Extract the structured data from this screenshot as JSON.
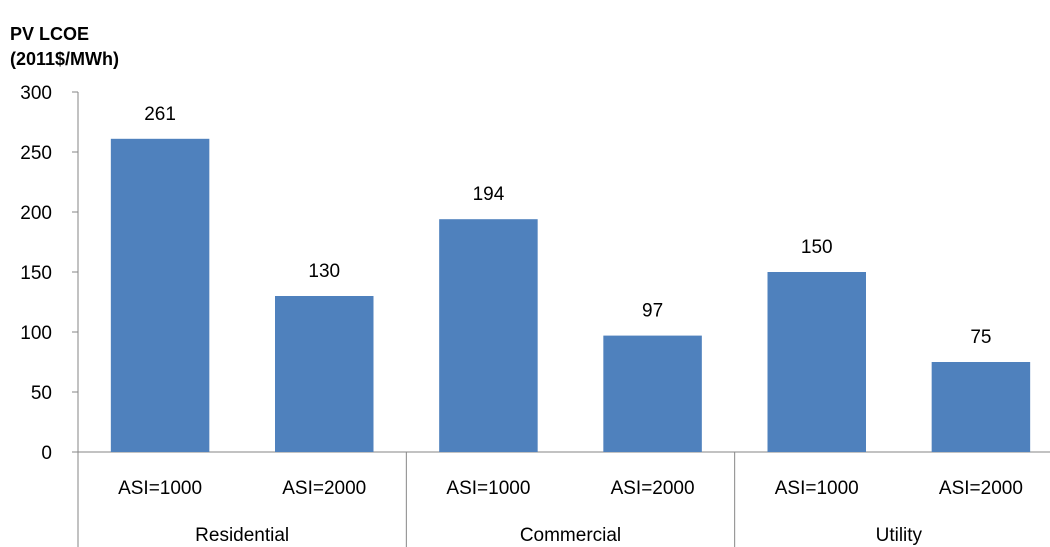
{
  "chart_data": {
    "type": "bar",
    "ylabel_lines": [
      "PV LCOE",
      "(2011$/MWh)"
    ],
    "ylim": [
      0,
      300
    ],
    "yticks": [
      0,
      50,
      100,
      150,
      200,
      250,
      300
    ],
    "groups": [
      {
        "name": "Residential",
        "categories": [
          "ASI=1000",
          "ASI=2000"
        ],
        "values": [
          261,
          130
        ]
      },
      {
        "name": "Commercial",
        "categories": [
          "ASI=1000",
          "ASI=2000"
        ],
        "values": [
          194,
          97
        ]
      },
      {
        "name": "Utility",
        "categories": [
          "ASI=1000",
          "ASI=2000"
        ],
        "values": [
          150,
          75
        ]
      }
    ],
    "bar_color": "#4F81BD",
    "data_labels": true,
    "grid": false
  }
}
